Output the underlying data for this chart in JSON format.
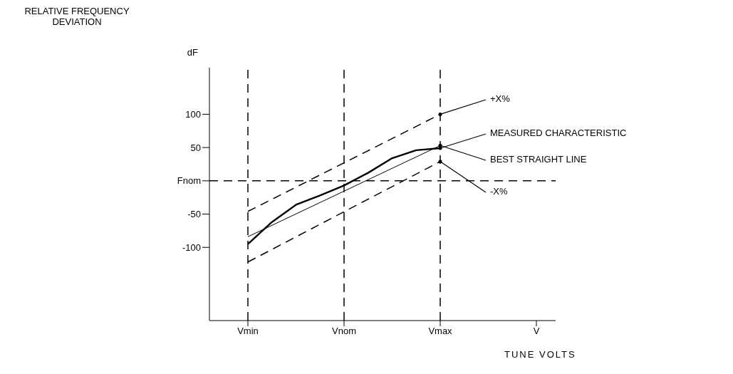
{
  "chart_data": {
    "type": "line",
    "xlabel": "TUNE VOLTS",
    "categories": [
      "Vmin",
      null,
      null,
      null,
      "Vnom",
      null,
      null,
      null,
      "Vmax",
      null,
      null,
      null,
      "V"
    ],
    "ylim": [
      -210,
      170
    ],
    "yticks": [
      -100,
      -50,
      {
        "value": 0,
        "label": "Fnom"
      },
      50,
      100
    ],
    "grid": false,
    "legend": false,
    "marker": "none",
    "series": [
      {
        "color": "#000000",
        "line_style": "dashed",
        "values": [
          -46,
          null,
          null,
          null,
          null,
          null,
          null,
          null,
          100,
          null,
          null,
          null,
          null
        ]
      },
      {
        "color": "#000000",
        "line_style": "solid",
        "values": [
          -95,
          -62,
          -36,
          -22,
          -7,
          12,
          34,
          46,
          49,
          null,
          null,
          null,
          null
        ]
      },
      {
        "color": "#000000",
        "line_style": "solid",
        "values": [
          -84,
          null,
          null,
          null,
          null,
          null,
          null,
          null,
          53,
          null,
          null,
          null,
          null
        ]
      },
      {
        "color": "#000000",
        "line_style": "dashed",
        "values": [
          -122,
          null,
          null,
          null,
          null,
          null,
          null,
          null,
          29,
          null,
          null,
          null,
          null
        ]
      }
    ],
    "ref_lines": [
      {
        "axis": "x",
        "value": "Vmin",
        "line_style": "dashed",
        "color": "#000000"
      },
      {
        "axis": "x",
        "value": "Vnom",
        "line_style": "dashed",
        "color": "#000000"
      },
      {
        "axis": "x",
        "value": "Vmax",
        "line_style": "dashed",
        "color": "#000000"
      },
      {
        "axis": "y",
        "value": 0,
        "line_style": "dashed",
        "color": "#000000"
      }
    ],
    "annotations": [
      "RELATIVE FREQUENCY DEVIATION",
      "dF",
      {
        "text": "+X%",
        "x": "Vmax",
        "y": 100
      },
      {
        "text": "MEASURED CHARACTERISTIC",
        "x": "Vmax",
        "y": 49
      },
      {
        "text": "BEST STRAIGHT LINE",
        "x": "Vmax",
        "y": 53
      },
      {
        "text": "-X%",
        "x": "Vmax",
        "y": 29
      }
    ]
  }
}
